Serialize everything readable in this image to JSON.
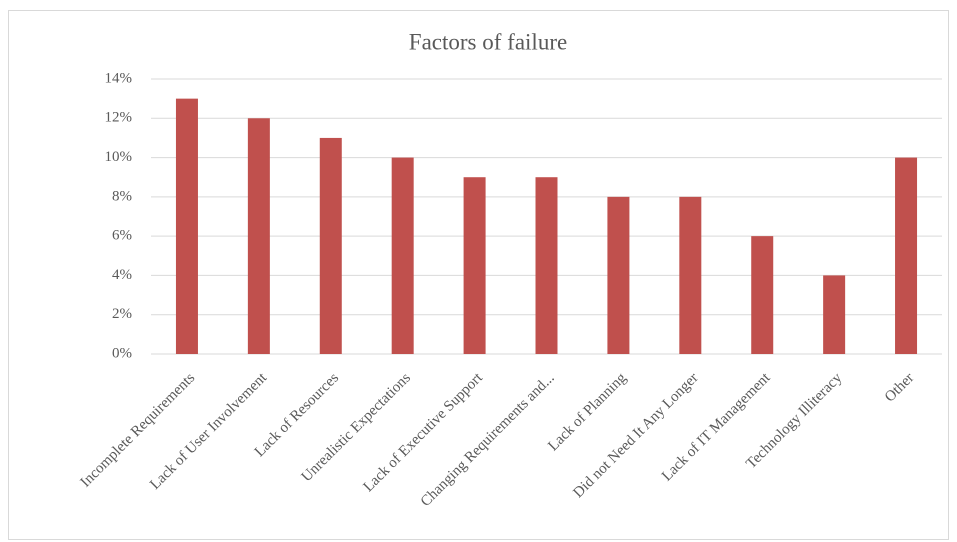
{
  "chart_data": {
    "type": "bar",
    "title": "Factors of failure",
    "categories": [
      "Incomplete Requirements",
      "Lack of User Involvement",
      "Lack of Resources",
      "Unrealistic Expectations",
      "Lack of Executive Support",
      "Changing Requirements and...",
      "Lack of Planning",
      "Did not Need It Any Longer",
      "Lack of IT Management",
      "Technology Illiteracy",
      "Other"
    ],
    "values": [
      13,
      12,
      11,
      10,
      9,
      9,
      8,
      8,
      6,
      4,
      10
    ],
    "color": "#c0504d",
    "ylim": [
      0,
      14
    ],
    "yticks": [
      {
        "value": 0,
        "label": "0%"
      },
      {
        "value": 2,
        "label": "2%"
      },
      {
        "value": 4,
        "label": "4%"
      },
      {
        "value": 6,
        "label": "6%"
      },
      {
        "value": 8,
        "label": "8%"
      },
      {
        "value": 10,
        "label": "10%"
      },
      {
        "value": 12,
        "label": "12%"
      },
      {
        "value": 14,
        "label": "14%"
      }
    ],
    "grid": true
  }
}
